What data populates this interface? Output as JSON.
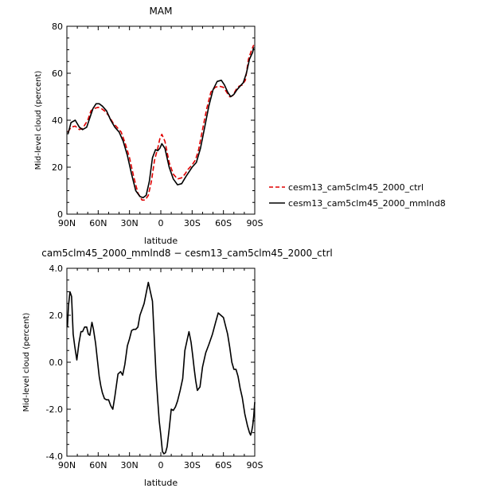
{
  "chart_data": [
    {
      "type": "line",
      "title": "MAM",
      "xlabel": "latitude",
      "ylabel": "Mid-level cloud (percent)",
      "xlim": [
        90,
        -90
      ],
      "ylim": [
        0,
        80
      ],
      "x_ticks": [
        90,
        60,
        30,
        0,
        -30,
        -60,
        -90
      ],
      "x_tick_labels": [
        "90N",
        "60N",
        "30N",
        "0",
        "30S",
        "60S",
        "90S"
      ],
      "y_ticks": [
        0,
        20,
        40,
        60,
        80
      ],
      "y_tick_labels": [
        "0",
        "20",
        "40",
        "60",
        "80"
      ],
      "legend_position": "right",
      "series": [
        {
          "name": "cesm13_cam5clm45_2000_ctrl",
          "color": "#e00000",
          "dash": "dashed",
          "x": [
            89,
            86,
            82,
            78,
            75,
            70,
            67,
            64,
            60,
            57,
            54,
            50,
            46,
            42,
            38,
            34,
            30,
            26,
            22,
            18,
            15,
            12,
            9,
            6,
            3,
            1,
            -1,
            -4,
            -8,
            -12,
            -16,
            -20,
            -23,
            -26,
            -30,
            -33,
            -36,
            -40,
            -44,
            -48,
            -52,
            -56,
            -60,
            -63,
            -66,
            -69,
            -72,
            -75,
            -78,
            -81,
            -84,
            -87,
            -89
          ],
          "y": [
            35,
            37,
            37.5,
            36,
            36.5,
            40,
            44,
            45,
            45.5,
            45,
            44,
            42,
            39,
            37,
            35,
            30,
            24,
            16,
            9,
            6,
            6,
            8,
            14,
            23,
            28,
            32,
            34,
            31,
            22,
            17,
            15,
            15.5,
            17,
            19,
            21,
            23,
            27,
            36,
            45,
            52,
            54,
            54.5,
            54,
            52,
            50,
            50.5,
            53,
            54.5,
            55,
            57,
            66,
            70,
            72
          ]
        },
        {
          "name": "cesm13_cam5clm45_2000_mmInd8",
          "color": "#000000",
          "dash": "solid",
          "x": [
            89,
            86,
            82,
            78,
            75,
            71,
            68,
            65,
            62,
            59,
            56,
            52,
            48,
            44,
            40,
            36,
            32,
            28,
            24,
            20,
            17,
            14,
            11,
            8,
            5,
            3,
            1,
            -1,
            -4,
            -8,
            -12,
            -16,
            -20,
            -24,
            -27,
            -30,
            -34,
            -38,
            -42,
            -46,
            -50,
            -54,
            -58,
            -61,
            -64,
            -67,
            -70,
            -73,
            -76,
            -79,
            -82,
            -85,
            -88,
            -89
          ],
          "y": [
            34,
            39,
            40,
            37,
            36,
            37,
            41,
            45,
            47,
            47,
            46,
            44,
            40,
            37,
            35,
            31,
            25,
            17,
            10,
            7.5,
            7,
            8,
            14,
            24,
            27.5,
            27,
            28,
            30,
            28,
            20,
            15,
            12.5,
            13,
            16,
            18,
            20,
            22,
            28,
            37,
            46,
            53,
            56.5,
            57,
            55,
            52,
            50,
            51,
            53,
            54.5,
            56,
            60,
            66,
            69,
            71
          ]
        }
      ]
    },
    {
      "type": "line",
      "title": "cam5clm45_2000_mmlnd8 − cesm13_cam5clm45_2000_ctrl",
      "xlabel": "latitude",
      "ylabel": "Mid-level cloud (percent)",
      "xlim": [
        90,
        -90
      ],
      "ylim": [
        -4,
        4
      ],
      "x_ticks": [
        90,
        60,
        30,
        0,
        -30,
        -60,
        -90
      ],
      "x_tick_labels": [
        "90N",
        "60N",
        "30N",
        "0",
        "30S",
        "60S",
        "90S"
      ],
      "y_ticks": [
        -4,
        -2,
        0,
        2,
        4
      ],
      "y_tick_labels": [
        "-4.0",
        "-2.0",
        "0.0",
        "2.0",
        "4.0"
      ],
      "series": [
        {
          "color": "#000000",
          "dash": "solid",
          "x": [
            89.5,
            88.5,
            87,
            85.5,
            84,
            82.5,
            80.5,
            78.5,
            76.5,
            75,
            73,
            71,
            69.5,
            68,
            66,
            64.5,
            62.5,
            61,
            59,
            57.5,
            56,
            54,
            52,
            50,
            48,
            46,
            44,
            41,
            38.5,
            36.5,
            34.5,
            32,
            30,
            28,
            26,
            24,
            22,
            20,
            16,
            12,
            8,
            4.5,
            3,
            1.5,
            0,
            -1.5,
            -3,
            -4.5,
            -6,
            -8,
            -10,
            -12,
            -14,
            -16,
            -18.5,
            -21,
            -23,
            -25.5,
            -27,
            -29,
            -30.5,
            -32,
            -33.5,
            -35,
            -37.5,
            -40,
            -43,
            -46,
            -49.5,
            -52.5,
            -55,
            -57.5,
            -60,
            -62,
            -64,
            -66,
            -68,
            -70,
            -72,
            -74,
            -76,
            -78,
            -80.5,
            -83,
            -85,
            -86,
            -87,
            -88,
            -89,
            -90
          ],
          "y": [
            1.5,
            2.4,
            3.0,
            2.8,
            1.2,
            0.7,
            0.1,
            0.8,
            1.3,
            1.3,
            1.5,
            1.5,
            1.2,
            1.15,
            1.7,
            1.4,
            0.8,
            0.2,
            -0.6,
            -1.0,
            -1.3,
            -1.55,
            -1.6,
            -1.6,
            -1.85,
            -2.0,
            -1.45,
            -0.5,
            -0.4,
            -0.55,
            -0.1,
            0.7,
            1.0,
            1.35,
            1.4,
            1.4,
            1.5,
            2.0,
            2.5,
            3.4,
            2.6,
            -0.6,
            -1.6,
            -2.5,
            -3.1,
            -3.8,
            -3.9,
            -3.85,
            -3.6,
            -2.85,
            -2.0,
            -2.05,
            -1.9,
            -1.65,
            -1.2,
            -0.7,
            0.5,
            1.0,
            1.3,
            0.85,
            0.3,
            -0.3,
            -0.8,
            -1.2,
            -1.05,
            -0.2,
            0.4,
            0.75,
            1.2,
            1.7,
            2.1,
            2.0,
            1.9,
            1.55,
            1.2,
            0.65,
            0.0,
            -0.3,
            -0.3,
            -0.6,
            -1.1,
            -1.5,
            -2.2,
            -2.7,
            -3.0,
            -3.1,
            -2.95,
            -2.7,
            -2.3,
            -1.7
          ]
        }
      ]
    }
  ]
}
